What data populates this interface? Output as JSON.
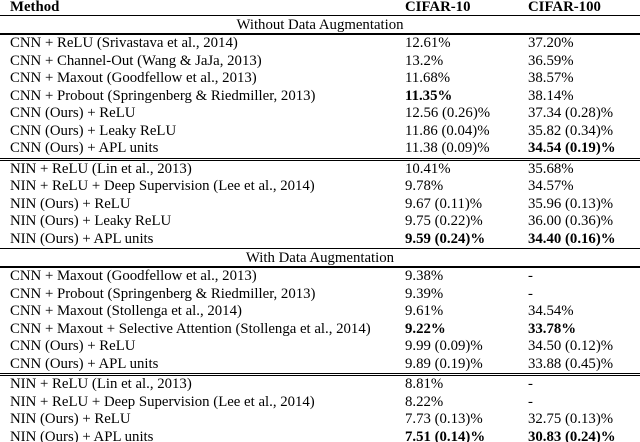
{
  "colors": {
    "text": "#000000",
    "background": "#ffffff",
    "rule": "#000000"
  },
  "table": {
    "columns": [
      {
        "label": "Method"
      },
      {
        "label": "CIFAR-10"
      },
      {
        "label": "CIFAR-100"
      }
    ],
    "sections": [
      {
        "title": "Without Data Augmentation",
        "groups": [
          {
            "rows": [
              {
                "method": "CNN + ReLU (Srivastava et al., 2014)",
                "cifar10": "12.61%",
                "cifar100": "37.20%",
                "bold10": false,
                "bold100": false
              },
              {
                "method": "CNN + Channel-Out (Wang & JaJa, 2013)",
                "cifar10": "13.2%",
                "cifar100": "36.59%",
                "bold10": false,
                "bold100": false
              },
              {
                "method": "CNN + Maxout (Goodfellow et al., 2013)",
                "cifar10": "11.68%",
                "cifar100": "38.57%",
                "bold10": false,
                "bold100": false
              },
              {
                "method": "CNN + Probout (Springenberg & Riedmiller, 2013)",
                "cifar10": "11.35%",
                "cifar100": "38.14%",
                "bold10": true,
                "bold100": false
              },
              {
                "method": "CNN (Ours) + ReLU",
                "cifar10": "12.56 (0.26)%",
                "cifar100": "37.34 (0.28)%",
                "bold10": false,
                "bold100": false
              },
              {
                "method": "CNN (Ours) + Leaky ReLU",
                "cifar10": "11.86 (0.04)%",
                "cifar100": "35.82 (0.34)%",
                "bold10": false,
                "bold100": false
              },
              {
                "method": "CNN (Ours) + APL units",
                "cifar10": "11.38 (0.09)%",
                "cifar100": "34.54 (0.19)%",
                "bold10": false,
                "bold100": true
              }
            ]
          },
          {
            "rows": [
              {
                "method": "NIN + ReLU (Lin et al., 2013)",
                "cifar10": "10.41%",
                "cifar100": "35.68%",
                "bold10": false,
                "bold100": false
              },
              {
                "method": "NIN + ReLU + Deep Supervision (Lee et al., 2014)",
                "cifar10": "9.78%",
                "cifar100": "34.57%",
                "bold10": false,
                "bold100": false
              },
              {
                "method": "NIN (Ours) + ReLU",
                "cifar10": "9.67 (0.11)%",
                "cifar100": "35.96 (0.13)%",
                "bold10": false,
                "bold100": false
              },
              {
                "method": "NIN (Ours) + Leaky ReLU",
                "cifar10": "9.75 (0.22)%",
                "cifar100": "36.00 (0.36)%",
                "bold10": false,
                "bold100": false
              },
              {
                "method": "NIN (Ours) + APL units",
                "cifar10": "9.59 (0.24)%",
                "cifar100": "34.40 (0.16)%",
                "bold10": true,
                "bold100": true
              }
            ]
          }
        ]
      },
      {
        "title": "With Data Augmentation",
        "groups": [
          {
            "rows": [
              {
                "method": "CNN + Maxout (Goodfellow et al., 2013)",
                "cifar10": "9.38%",
                "cifar100": "-",
                "bold10": false,
                "bold100": false
              },
              {
                "method": "CNN + Probout (Springenberg & Riedmiller, 2013)",
                "cifar10": "9.39%",
                "cifar100": "-",
                "bold10": false,
                "bold100": false
              },
              {
                "method": "CNN + Maxout (Stollenga et al., 2014)",
                "cifar10": "9.61%",
                "cifar100": "34.54%",
                "bold10": false,
                "bold100": false
              },
              {
                "method": "CNN + Maxout + Selective Attention (Stollenga et al., 2014)",
                "cifar10": "9.22%",
                "cifar100": "33.78%",
                "bold10": true,
                "bold100": true
              },
              {
                "method": "CNN (Ours) + ReLU",
                "cifar10": "9.99 (0.09)%",
                "cifar100": "34.50 (0.12)%",
                "bold10": false,
                "bold100": false
              },
              {
                "method": "CNN (Ours) + APL units",
                "cifar10": "9.89 (0.19)%",
                "cifar100": "33.88 (0.45)%",
                "bold10": false,
                "bold100": false
              }
            ]
          },
          {
            "rows": [
              {
                "method": "NIN + ReLU (Lin et al., 2013)",
                "cifar10": "8.81%",
                "cifar100": "-",
                "bold10": false,
                "bold100": false
              },
              {
                "method": "NIN + ReLU + Deep Supervision (Lee et al., 2014)",
                "cifar10": "8.22%",
                "cifar100": "-",
                "bold10": false,
                "bold100": false
              },
              {
                "method": "NIN (Ours) + ReLU",
                "cifar10": "7.73 (0.13)%",
                "cifar100": "32.75 (0.13)%",
                "bold10": false,
                "bold100": false
              },
              {
                "method": "NIN (Ours) + APL units",
                "cifar10": "7.51 (0.14)%",
                "cifar100": "30.83 (0.24)%",
                "bold10": true,
                "bold100": true
              }
            ]
          }
        ]
      }
    ]
  }
}
